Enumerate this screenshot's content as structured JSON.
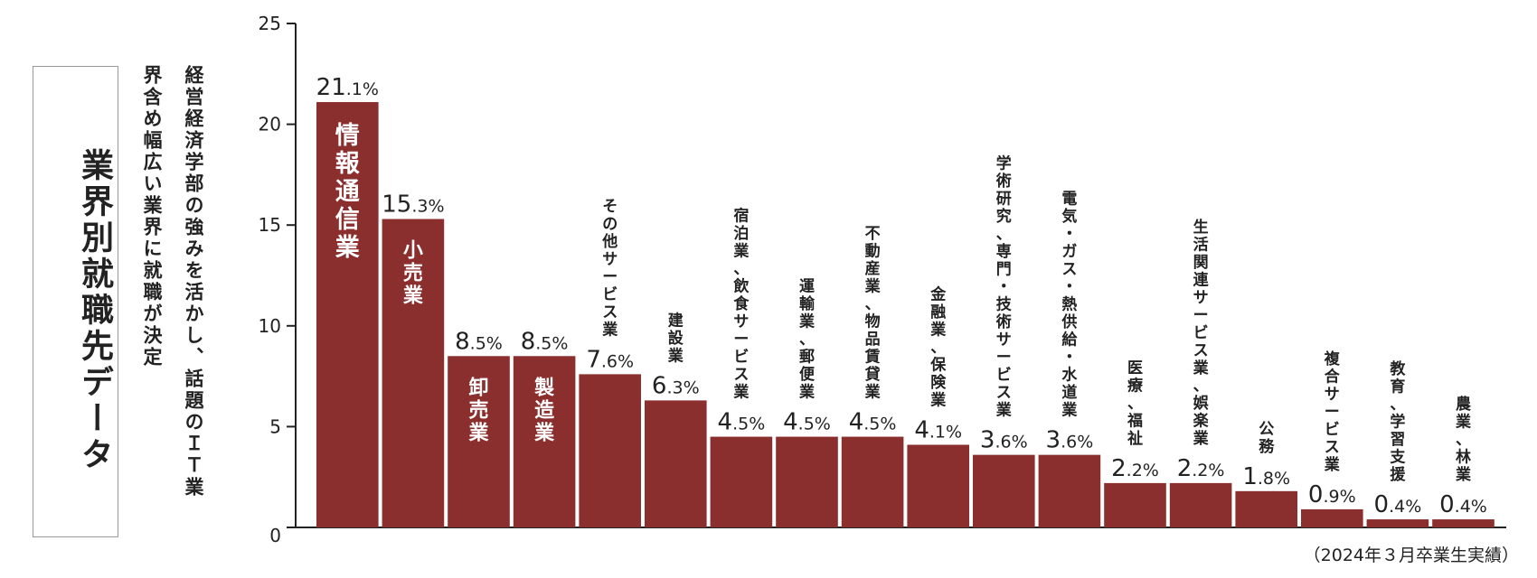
{
  "title": "業界別就職先データ",
  "subtitle_lines": [
    "経営経済学部の強みを活かし、話題のＩＴ業",
    "界含め幅広い業界に就職が決定"
  ],
  "note": "（2024年３月卒業生実績）",
  "colors": {
    "bar": "#8b2e2e",
    "text": "#222222",
    "inner_label": "#ffffff"
  },
  "chart_data": {
    "type": "bar",
    "title": "業界別就職先データ",
    "xlabel": "",
    "ylabel": "",
    "ylim": [
      0,
      25
    ],
    "yticks": [
      0,
      5,
      10,
      15,
      20,
      25
    ],
    "grid": false,
    "categories": [
      "情報通信業",
      "小売業",
      "卸売業",
      "製造業",
      "その他サービス業",
      "建設業",
      "宿泊業、飲食サービス業",
      "運輸業、郵便業",
      "不動産業、物品賃貸業",
      "金融業、保険業",
      "学術研究、専門・技術サービス業",
      "電気・ガス・熱供給・水道業",
      "医療、福祉",
      "生活関連サービス業、娯楽業",
      "公務",
      "複合サービス業",
      "教育、学習支援",
      "農業、林業"
    ],
    "values": [
      21.1,
      15.3,
      8.5,
      8.5,
      7.6,
      6.3,
      4.5,
      4.5,
      4.5,
      4.1,
      3.6,
      3.6,
      2.2,
      2.2,
      1.8,
      0.9,
      0.4,
      0.4
    ],
    "value_labels": [
      {
        "int": "21",
        "dec": ".1%"
      },
      {
        "int": "15",
        "dec": ".3%"
      },
      {
        "int": "8",
        "dec": ".5%"
      },
      {
        "int": "8",
        "dec": ".5%"
      },
      {
        "int": "7",
        "dec": ".6%"
      },
      {
        "int": "6",
        "dec": ".3%"
      },
      {
        "int": "4",
        "dec": ".5%"
      },
      {
        "int": "4",
        "dec": ".5%"
      },
      {
        "int": "4",
        "dec": ".5%"
      },
      {
        "int": "4",
        "dec": ".1%"
      },
      {
        "int": "3",
        "dec": ".6%"
      },
      {
        "int": "3",
        "dec": ".6%"
      },
      {
        "int": "2",
        "dec": ".2%"
      },
      {
        "int": "2",
        "dec": ".2%"
      },
      {
        "int": "1",
        "dec": ".8%"
      },
      {
        "int": "0",
        "dec": ".9%"
      },
      {
        "int": "0",
        "dec": ".4%"
      },
      {
        "int": "0",
        "dec": ".4%"
      }
    ],
    "category_label_inside": [
      true,
      true,
      true,
      true,
      false,
      false,
      false,
      false,
      false,
      false,
      false,
      false,
      false,
      false,
      false,
      false,
      false,
      false
    ]
  }
}
